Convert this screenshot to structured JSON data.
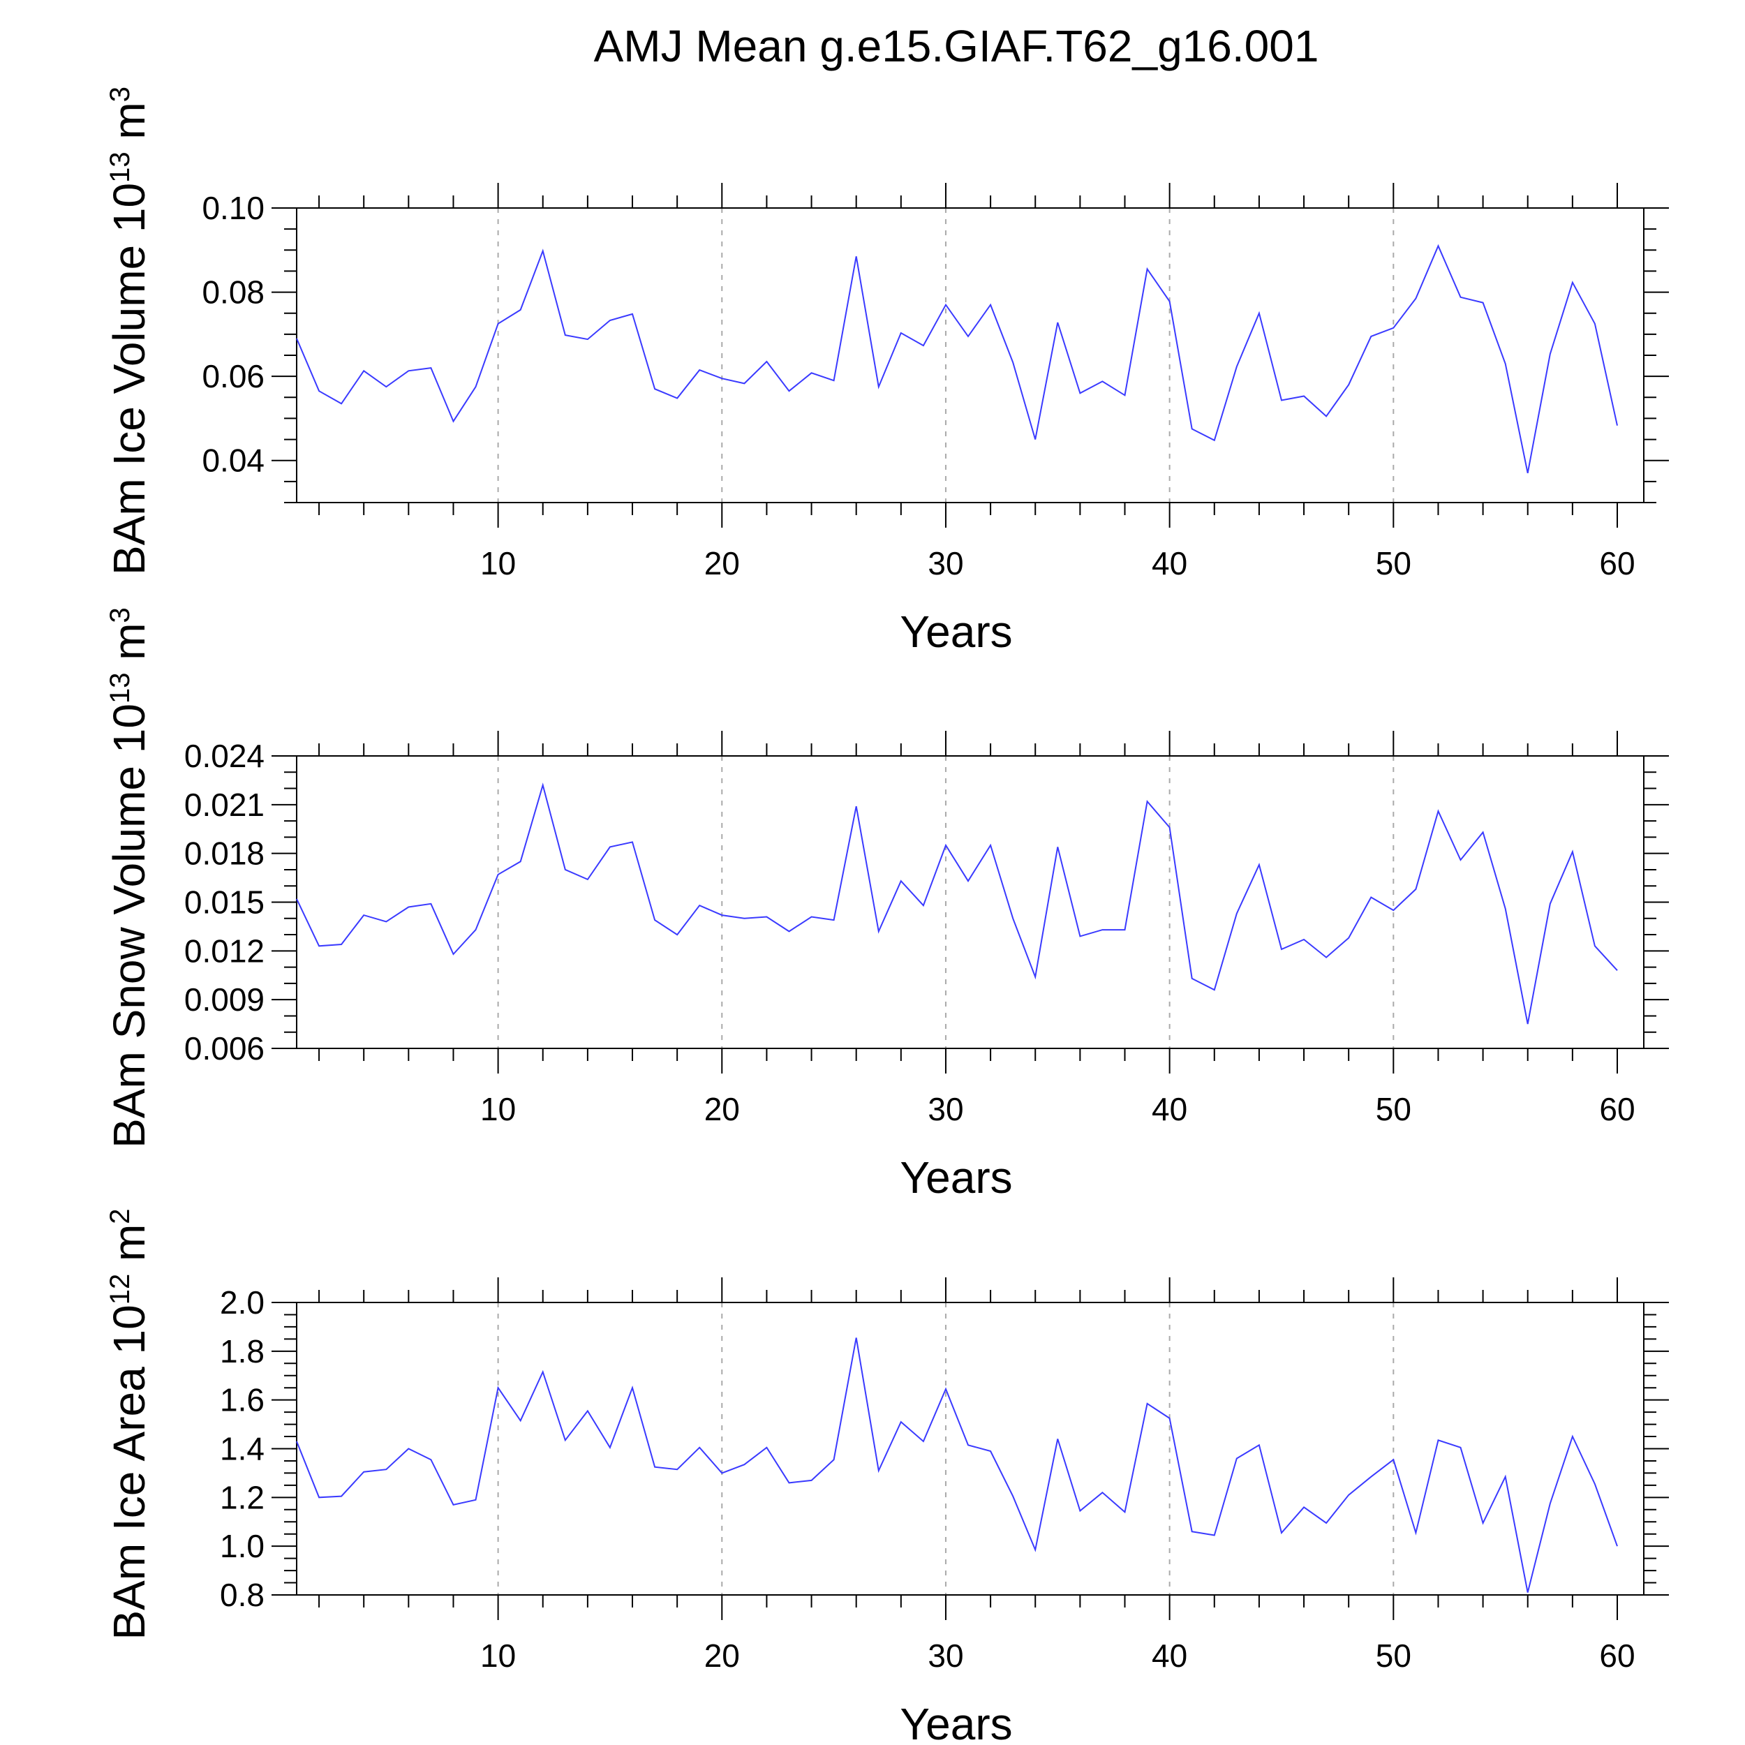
{
  "figure": {
    "title": "AMJ Mean g.e15.GIAF.T62_g16.001"
  },
  "colors": {
    "series": "#3a3aff",
    "axis": "#000000",
    "grid": "#aaaaaa"
  },
  "chart_data": [
    {
      "type": "line",
      "ylabel_main": "BAm Ice Volume 10",
      "ylabel_exp": "13",
      "ylabel_unit": "m",
      "ylabel_unit_exp": "3",
      "xlabel": "Years",
      "xlim": [
        1,
        60
      ],
      "ylim": [
        0.03,
        0.1
      ],
      "xticks": [
        10,
        20,
        30,
        40,
        50,
        60
      ],
      "yticks": [
        0.04,
        0.06,
        0.08,
        0.1
      ],
      "ytick_labels": [
        "0.04",
        "0.06",
        "0.08",
        "0.10"
      ],
      "yminor_step": 0.005,
      "grid": "vertical dashed at major x ticks",
      "x": [
        1,
        2,
        3,
        4,
        5,
        6,
        7,
        8,
        9,
        10,
        11,
        12,
        13,
        14,
        15,
        16,
        17,
        18,
        19,
        20,
        21,
        22,
        23,
        24,
        25,
        26,
        27,
        28,
        29,
        30,
        31,
        32,
        33,
        34,
        35,
        36,
        37,
        38,
        39,
        40,
        41,
        42,
        43,
        44,
        45,
        46,
        47,
        48,
        49,
        50,
        51,
        52,
        53,
        54,
        55,
        56,
        57,
        58,
        59,
        60
      ],
      "values": [
        0.069,
        0.0565,
        0.0535,
        0.0613,
        0.0575,
        0.0613,
        0.062,
        0.0493,
        0.0575,
        0.0725,
        0.0758,
        0.0898,
        0.0698,
        0.0688,
        0.0733,
        0.0748,
        0.057,
        0.0548,
        0.0615,
        0.0595,
        0.0583,
        0.0635,
        0.0565,
        0.0608,
        0.059,
        0.0885,
        0.0575,
        0.0703,
        0.0673,
        0.077,
        0.0695,
        0.077,
        0.0633,
        0.045,
        0.0728,
        0.056,
        0.0588,
        0.0555,
        0.0855,
        0.0778,
        0.0475,
        0.0448,
        0.0623,
        0.075,
        0.0543,
        0.0553,
        0.0505,
        0.058,
        0.0695,
        0.0715,
        0.0785,
        0.091,
        0.0788,
        0.0775,
        0.063,
        0.037,
        0.0653,
        0.0823,
        0.0725,
        0.0483
      ]
    },
    {
      "type": "line",
      "ylabel_main": "BAm Snow Volume 10",
      "ylabel_exp": "13",
      "ylabel_unit": "m",
      "ylabel_unit_exp": "3",
      "xlabel": "Years",
      "xlim": [
        1,
        60
      ],
      "ylim": [
        0.006,
        0.024
      ],
      "xticks": [
        10,
        20,
        30,
        40,
        50,
        60
      ],
      "yticks": [
        0.006,
        0.009,
        0.012,
        0.015,
        0.018,
        0.021,
        0.024
      ],
      "ytick_labels": [
        "0.006",
        "0.009",
        "0.012",
        "0.015",
        "0.018",
        "0.021",
        "0.024"
      ],
      "yminor_step": 0.001,
      "grid": "vertical dashed at major x ticks",
      "x": [
        1,
        2,
        3,
        4,
        5,
        6,
        7,
        8,
        9,
        10,
        11,
        12,
        13,
        14,
        15,
        16,
        17,
        18,
        19,
        20,
        21,
        22,
        23,
        24,
        25,
        26,
        27,
        28,
        29,
        30,
        31,
        32,
        33,
        34,
        35,
        36,
        37,
        38,
        39,
        40,
        41,
        42,
        43,
        44,
        45,
        46,
        47,
        48,
        49,
        50,
        51,
        52,
        53,
        54,
        55,
        56,
        57,
        58,
        59,
        60
      ],
      "values": [
        0.0152,
        0.0123,
        0.0124,
        0.0142,
        0.0138,
        0.0147,
        0.0149,
        0.0118,
        0.0133,
        0.0167,
        0.0175,
        0.0222,
        0.017,
        0.0164,
        0.0184,
        0.0187,
        0.0139,
        0.013,
        0.0148,
        0.0142,
        0.014,
        0.0141,
        0.0132,
        0.0141,
        0.0139,
        0.0209,
        0.0132,
        0.0163,
        0.0148,
        0.0185,
        0.0163,
        0.0185,
        0.014,
        0.0104,
        0.0184,
        0.0129,
        0.0133,
        0.0133,
        0.0212,
        0.0196,
        0.0103,
        0.0096,
        0.0143,
        0.0173,
        0.0121,
        0.0127,
        0.0116,
        0.0128,
        0.0153,
        0.0145,
        0.0158,
        0.0206,
        0.0176,
        0.0193,
        0.0146,
        0.0075,
        0.0149,
        0.0181,
        0.0123,
        0.0108
      ]
    },
    {
      "type": "line",
      "ylabel_main": "BAm Ice Area 10",
      "ylabel_exp": "12",
      "ylabel_unit": "m",
      "ylabel_unit_exp": "2",
      "xlabel": "Years",
      "xlim": [
        1,
        60
      ],
      "ylim": [
        0.8,
        2.0
      ],
      "xticks": [
        10,
        20,
        30,
        40,
        50,
        60
      ],
      "yticks": [
        0.8,
        1.0,
        1.2,
        1.4,
        1.6,
        1.8,
        2.0
      ],
      "ytick_labels": [
        "0.8",
        "1.0",
        "1.2",
        "1.4",
        "1.6",
        "1.8",
        "2.0"
      ],
      "yminor_step": 0.05,
      "grid": "vertical dashed at major x ticks",
      "x": [
        1,
        2,
        3,
        4,
        5,
        6,
        7,
        8,
        9,
        10,
        11,
        12,
        13,
        14,
        15,
        16,
        17,
        18,
        19,
        20,
        21,
        22,
        23,
        24,
        25,
        26,
        27,
        28,
        29,
        30,
        31,
        32,
        33,
        34,
        35,
        36,
        37,
        38,
        39,
        40,
        41,
        42,
        43,
        44,
        45,
        46,
        47,
        48,
        49,
        50,
        51,
        52,
        53,
        54,
        55,
        56,
        57,
        58,
        59,
        60
      ],
      "values": [
        1.43,
        1.2,
        1.205,
        1.305,
        1.315,
        1.4,
        1.355,
        1.17,
        1.19,
        1.65,
        1.515,
        1.715,
        1.435,
        1.555,
        1.405,
        1.65,
        1.325,
        1.315,
        1.405,
        1.3,
        1.335,
        1.405,
        1.26,
        1.27,
        1.355,
        1.855,
        1.31,
        1.51,
        1.43,
        1.645,
        1.415,
        1.39,
        1.205,
        0.985,
        1.44,
        1.145,
        1.22,
        1.14,
        1.585,
        1.525,
        1.06,
        1.045,
        1.36,
        1.415,
        1.055,
        1.16,
        1.095,
        1.21,
        1.285,
        1.355,
        1.055,
        1.435,
        1.405,
        1.095,
        1.285,
        0.81,
        1.175,
        1.45,
        1.255,
        1.0
      ]
    }
  ]
}
